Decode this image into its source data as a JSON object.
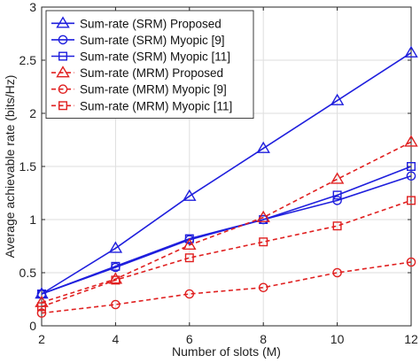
{
  "chart_data": {
    "type": "line",
    "xlabel": "Number of slots (M)",
    "ylabel": "Average achievable rate (bits/Hz)",
    "xlim": [
      2,
      12
    ],
    "ylim": [
      0,
      3
    ],
    "xticks": [
      "2",
      "4",
      "6",
      "8",
      "10",
      "12"
    ],
    "yticks": [
      "0",
      "0.5",
      "1",
      "1.5",
      "2",
      "2.5",
      "3"
    ],
    "grid": true,
    "legend_position": "top-left",
    "x": [
      2,
      4,
      6,
      8,
      10,
      12
    ],
    "series": [
      {
        "name": "Sum-rate (SRM) Proposed",
        "values": [
          0.3,
          0.73,
          1.22,
          1.67,
          2.12,
          2.57
        ],
        "color": "#1f1fdd",
        "dash": "solid",
        "marker": "triangle"
      },
      {
        "name": "Sum-rate (SRM) Myopic [9]",
        "values": [
          0.3,
          0.55,
          0.81,
          1.0,
          1.18,
          1.41
        ],
        "color": "#1f1fdd",
        "dash": "solid",
        "marker": "circle"
      },
      {
        "name": "Sum-rate (SRM) Myopic [11]",
        "values": [
          0.3,
          0.56,
          0.82,
          1.0,
          1.23,
          1.5
        ],
        "color": "#1f1fdd",
        "dash": "solid",
        "marker": "square"
      },
      {
        "name": "Sum-rate (MRM) Proposed",
        "values": [
          0.22,
          0.44,
          0.76,
          1.02,
          1.38,
          1.73
        ],
        "color": "#e02020",
        "dash": "dashed",
        "marker": "triangle"
      },
      {
        "name": "Sum-rate (MRM) Myopic [9]",
        "values": [
          0.12,
          0.2,
          0.3,
          0.36,
          0.5,
          0.6
        ],
        "color": "#e02020",
        "dash": "dashed",
        "marker": "circle"
      },
      {
        "name": "Sum-rate (MRM) Myopic [11]",
        "values": [
          0.18,
          0.43,
          0.64,
          0.79,
          0.94,
          1.18
        ],
        "color": "#e02020",
        "dash": "dashed",
        "marker": "square"
      }
    ]
  }
}
